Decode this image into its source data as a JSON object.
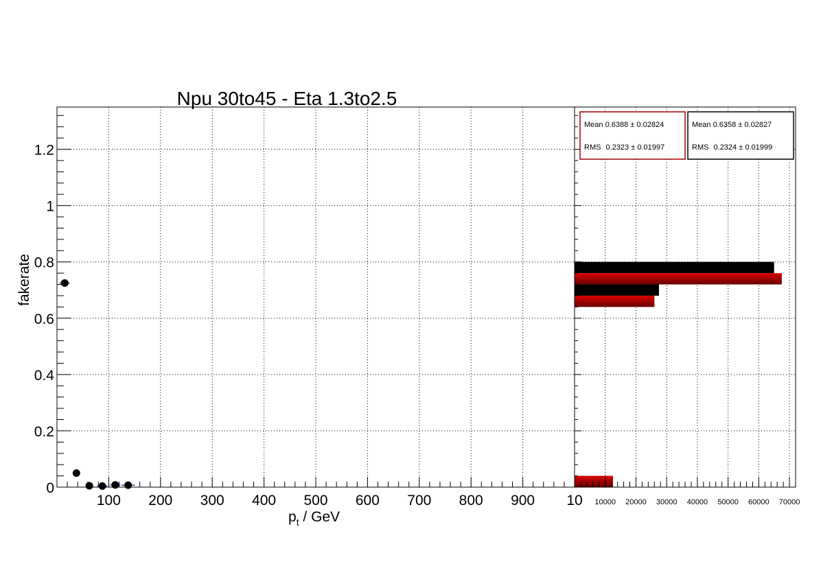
{
  "chart_data": [
    {
      "type": "scatter",
      "title": "Npu 30to45 - Eta 1.3to2.5",
      "xlabel_main": "p",
      "xlabel_sub": "t",
      "xlabel_rest": " / GeV",
      "ylabel": "fakerate",
      "xlim": [
        0,
        1000
      ],
      "ylim": [
        0,
        1.35
      ],
      "grid": true,
      "x_ticks": [
        "100",
        "200",
        "300",
        "400",
        "500",
        "600",
        "700",
        "800",
        "900",
        "10"
      ],
      "x_tick_values": [
        100,
        200,
        300,
        400,
        500,
        600,
        700,
        800,
        900,
        1000
      ],
      "y_ticks": [
        "0",
        "0.2",
        "0.4",
        "0.6",
        "0.8",
        "1",
        "1.2"
      ],
      "y_tick_values": [
        0,
        0.2,
        0.4,
        0.6,
        0.8,
        1.0,
        1.2
      ],
      "series": [
        {
          "color": "#000000",
          "points": [
            {
              "x": 15,
              "y": 0.725,
              "xerr": 10
            },
            {
              "x": 37.5,
              "y": 0.05,
              "xerr": 5
            },
            {
              "x": 62.5,
              "y": 0.005,
              "xerr": 7.5
            },
            {
              "x": 87.5,
              "y": 0.004,
              "xerr": 10
            },
            {
              "x": 112.5,
              "y": 0.008,
              "xerr": 10
            },
            {
              "x": 137.5,
              "y": 0.007,
              "xerr": 12.5
            }
          ]
        }
      ]
    },
    {
      "type": "bar",
      "orientation": "horizontal",
      "xlim": [
        0,
        72000
      ],
      "ylim": [
        0,
        1.35
      ],
      "grid": true,
      "x_ticks": [
        "10000",
        "20000",
        "30000",
        "40000",
        "50000",
        "60000",
        "70000"
      ],
      "x_tick_values": [
        10000,
        20000,
        30000,
        40000,
        50000,
        60000,
        70000
      ],
      "series": [
        {
          "color": "#000000",
          "bins": [
            {
              "y0": 0.0,
              "y1": 0.04,
              "value": 12500
            },
            {
              "y0": 0.68,
              "y1": 0.72,
              "value": 27500
            },
            {
              "y0": 0.76,
              "y1": 0.8,
              "value": 65000
            }
          ]
        },
        {
          "color": "#a00000",
          "bins": [
            {
              "y0": 0.0,
              "y1": 0.04,
              "value": 12500
            },
            {
              "y0": 0.64,
              "y1": 0.68,
              "value": 26000
            },
            {
              "y0": 0.72,
              "y1": 0.76,
              "value": 67500
            }
          ]
        }
      ],
      "stats": [
        {
          "color": "#a00000",
          "mean_label": "Mean",
          "mean": "0.6388",
          "mean_err": "0.02824",
          "rms_label": "RMS",
          "rms": "0.2323",
          "rms_err": "0.01997"
        },
        {
          "color": "#000000",
          "mean_label": "Mean",
          "mean": "0.6358",
          "mean_err": "0.02827",
          "rms_label": "RMS",
          "rms": "0.2324",
          "rms_err": "0.01999"
        }
      ]
    }
  ]
}
